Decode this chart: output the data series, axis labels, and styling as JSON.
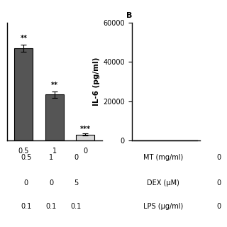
{
  "panel_a": {
    "bar_values": [
      18000,
      9000,
      1200
    ],
    "bar_errors": [
      700,
      600,
      200
    ],
    "bar_colors": [
      "#555555",
      "#555555",
      "#d8d8d8"
    ],
    "bar_labels": [
      "0.5",
      "1",
      "0"
    ],
    "significance": [
      "**",
      "**",
      "***"
    ],
    "ylim": [
      0,
      23000
    ],
    "row_values_col1": [
      "0.5",
      "0",
      "0.1"
    ],
    "row_values_col2": [
      "1",
      "0",
      "0.1"
    ],
    "row_values_col3": [
      "0",
      "5",
      "0.1"
    ]
  },
  "panel_b": {
    "title": "B",
    "ylabel": "IL-6 (pg/ml)",
    "ylim": [
      0,
      60000
    ],
    "yticks": [
      0,
      20000,
      40000,
      60000
    ],
    "ytick_labels": [
      "0",
      "20000",
      "40000",
      "60000"
    ],
    "row_labels": [
      "MT (mg/ml)",
      "DEX (μM)",
      "LPS (μg/ml)"
    ],
    "row_values": [
      "0",
      "0",
      "0"
    ]
  },
  "background_color": "#ffffff",
  "bar_width": 0.6,
  "fontsize": 7,
  "tick_fontsize": 7
}
